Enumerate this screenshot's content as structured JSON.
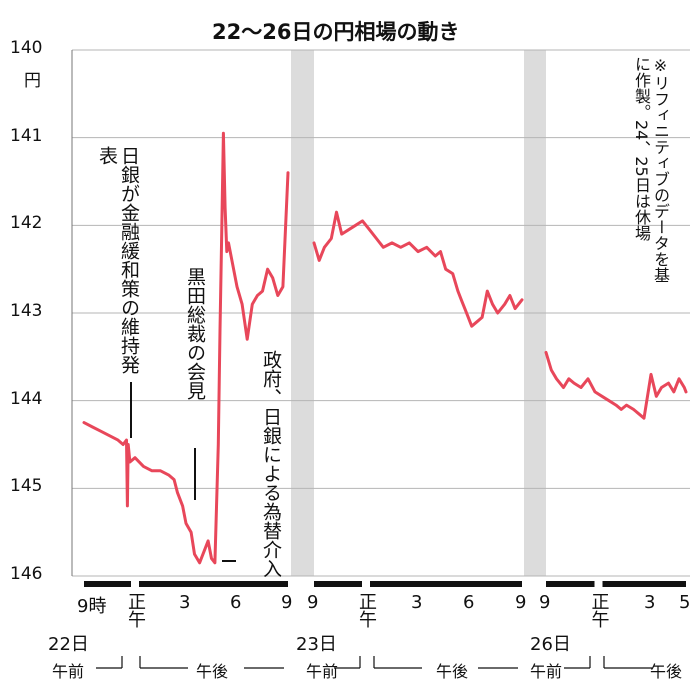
{
  "chart_data": {
    "type": "line",
    "title": "22〜26日の円相場の動き",
    "y_axis": {
      "ticks": [
        "140",
        "141",
        "142",
        "143",
        "144",
        "145",
        "146"
      ],
      "unit": "円",
      "range": [
        140,
        146
      ],
      "inverted": true
    },
    "grid": true,
    "note": "※リフィニティブのデータを基に作製。24、25日は休場",
    "annotations": [
      "日銀が金融緩和策の維持発表",
      "黒田総裁の会見",
      "政府、日銀による為替介入"
    ],
    "x_tick_labels": {
      "day22": [
        "9時",
        "正午",
        "3",
        "6",
        "9"
      ],
      "day23": [
        "9",
        "正午",
        "3",
        "6",
        "9"
      ],
      "day26": [
        "9",
        "正午",
        "3",
        "5"
      ]
    },
    "day_labels": [
      "22日",
      "23日",
      "26日"
    ],
    "session_labels": {
      "am": "午前",
      "pm": "午後"
    },
    "series": [
      {
        "day": "22日",
        "hours": [
          9,
          9.5,
          10,
          10.5,
          11,
          11.3,
          11.5,
          11.55,
          11.6,
          11.7,
          12,
          12.5,
          13,
          13.5,
          14,
          14.3,
          14.5,
          14.8,
          15,
          15.3,
          15.5,
          15.8,
          16,
          16.3,
          16.5,
          16.7,
          16.9,
          17.0,
          17.1,
          17.2,
          17.3,
          17.4,
          17.5,
          17.7,
          18,
          18.3,
          18.6,
          18.9,
          19.2,
          19.5,
          19.8,
          20.1,
          20.4,
          20.7,
          21
        ],
        "values": [
          144.25,
          144.3,
          144.35,
          144.4,
          144.45,
          144.5,
          144.45,
          145.2,
          144.5,
          144.7,
          144.65,
          144.75,
          144.8,
          144.8,
          144.85,
          144.9,
          145.05,
          145.2,
          145.4,
          145.5,
          145.75,
          145.85,
          145.75,
          145.6,
          145.8,
          145.85,
          144.5,
          143.2,
          142.1,
          140.95,
          141.8,
          142.3,
          142.2,
          142.4,
          142.7,
          142.9,
          143.3,
          142.9,
          142.8,
          142.75,
          142.5,
          142.6,
          142.8,
          142.7,
          141.4
        ]
      },
      {
        "day": "23日",
        "hours": [
          9,
          9.3,
          9.6,
          10,
          10.3,
          10.6,
          11,
          11.4,
          11.8,
          12.2,
          12.6,
          13,
          13.5,
          14,
          14.5,
          15,
          15.5,
          16,
          16.3,
          16.6,
          17,
          17.3,
          17.5,
          17.7,
          17.9,
          18.1,
          18.4,
          18.7,
          19,
          19.3,
          19.6,
          20,
          20.3,
          20.6,
          21
        ],
        "values": [
          142.2,
          142.4,
          142.25,
          142.15,
          141.85,
          142.1,
          142.05,
          142.0,
          141.95,
          142.05,
          142.15,
          142.25,
          142.2,
          142.25,
          142.2,
          142.3,
          142.25,
          142.35,
          142.3,
          142.5,
          142.55,
          142.75,
          142.85,
          142.95,
          143.05,
          143.15,
          143.1,
          143.05,
          142.75,
          142.9,
          143.0,
          142.9,
          142.8,
          142.95,
          142.85
        ]
      },
      {
        "day": "26日",
        "hours": [
          9,
          9.3,
          9.6,
          10,
          10.3,
          10.6,
          11,
          11.4,
          11.8,
          12.2,
          12.6,
          13,
          13.3,
          13.6,
          14,
          14.3,
          14.6,
          15,
          15.3,
          15.6,
          16,
          16.3,
          16.6,
          16.9,
          17
        ],
        "values": [
          143.45,
          143.65,
          143.75,
          143.85,
          143.75,
          143.8,
          143.85,
          143.75,
          143.9,
          143.95,
          144.0,
          144.05,
          144.1,
          144.05,
          144.1,
          144.15,
          144.2,
          143.7,
          143.95,
          143.85,
          143.8,
          143.9,
          143.75,
          143.85,
          143.9
        ]
      }
    ],
    "colors": {
      "line": "#e8475a",
      "grid": "#b5b5b5",
      "gap": "#dcdcdc"
    }
  }
}
